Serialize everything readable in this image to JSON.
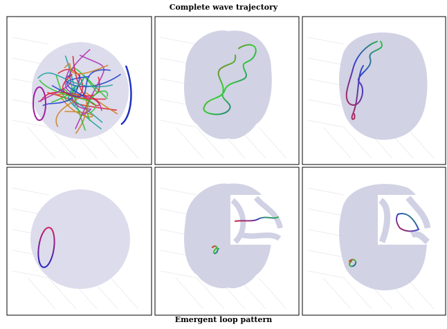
{
  "header": {
    "title": "Complete wave trajectory"
  },
  "footer": {
    "caption": "Emergent loop pattern"
  }
}
